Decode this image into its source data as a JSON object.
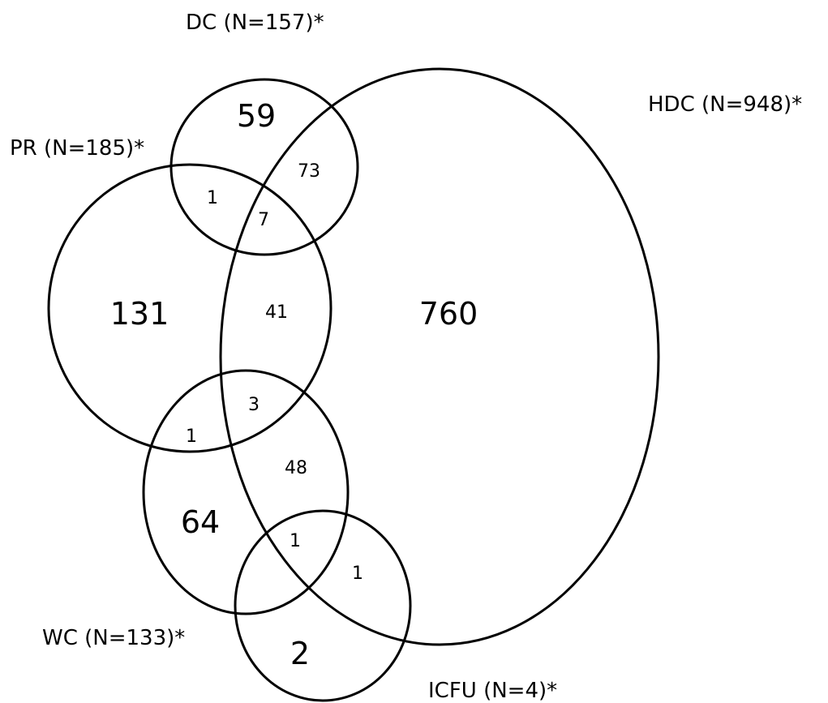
{
  "diagram": {
    "sets": {
      "dc": "DC (N=157)*",
      "hdc": "HDC (N=948)*",
      "pr": "PR (N=185)*",
      "wc": "WC (N=133)*",
      "icfu": "ICFU (N=4)*"
    },
    "regions": {
      "dc_only": "59",
      "dc_hdc": "73",
      "dc_pr": "1",
      "dc_pr_hdc": "7",
      "pr_only": "131",
      "pr_hdc": "41",
      "hdc_only": "760",
      "pr_wc_hdc": "3",
      "pr_wc": "1",
      "wc_hdc": "48",
      "wc_only": "64",
      "wc_icfu_hdc": "1",
      "icfu_hdc": "1",
      "icfu_only": "2"
    }
  }
}
